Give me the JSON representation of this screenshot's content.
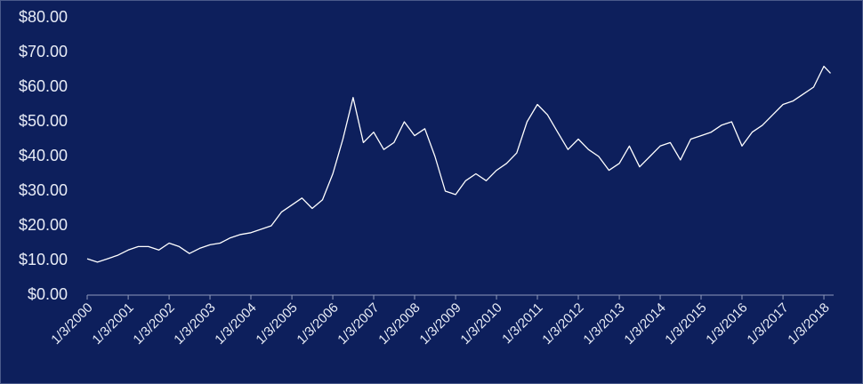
{
  "chart_data": {
    "type": "line",
    "x": [
      "2000-01-03",
      "2000-04-03",
      "2000-07-03",
      "2000-10-03",
      "2001-01-03",
      "2001-04-03",
      "2001-07-03",
      "2001-10-03",
      "2002-01-03",
      "2002-04-03",
      "2002-07-03",
      "2002-10-03",
      "2003-01-03",
      "2003-04-03",
      "2003-07-03",
      "2003-10-03",
      "2004-01-03",
      "2004-04-03",
      "2004-07-03",
      "2004-10-03",
      "2005-01-03",
      "2005-04-03",
      "2005-07-03",
      "2005-10-03",
      "2006-01-03",
      "2006-04-03",
      "2006-07-03",
      "2006-10-03",
      "2007-01-03",
      "2007-04-03",
      "2007-07-03",
      "2007-10-03",
      "2008-01-03",
      "2008-04-03",
      "2008-07-03",
      "2008-10-03",
      "2009-01-03",
      "2009-04-03",
      "2009-07-03",
      "2009-10-03",
      "2010-01-03",
      "2010-04-03",
      "2010-07-03",
      "2010-10-03",
      "2011-01-03",
      "2011-04-03",
      "2011-07-03",
      "2011-10-03",
      "2012-01-03",
      "2012-04-03",
      "2012-07-03",
      "2012-10-03",
      "2013-01-03",
      "2013-04-03",
      "2013-07-03",
      "2013-10-03",
      "2014-01-03",
      "2014-04-03",
      "2014-07-03",
      "2014-10-03",
      "2015-01-03",
      "2015-04-03",
      "2015-07-03",
      "2015-10-03",
      "2016-01-03",
      "2016-04-03",
      "2016-07-03",
      "2016-10-03",
      "2017-01-03",
      "2017-04-03",
      "2017-07-03",
      "2017-10-03",
      "2018-01-03",
      "2018-03-03"
    ],
    "values": [
      10.5,
      9.5,
      10.5,
      11.5,
      13,
      14,
      14,
      13,
      15,
      14,
      12,
      13.5,
      14.5,
      15,
      16.5,
      17.5,
      18,
      19,
      20,
      24,
      26,
      28,
      25,
      27.5,
      35,
      45,
      57,
      44,
      47,
      42,
      44,
      50,
      46,
      48,
      40,
      30,
      29,
      33,
      35,
      33,
      36,
      38,
      41,
      50,
      55,
      52,
      47,
      42,
      45,
      42,
      40,
      36,
      38,
      43,
      37,
      40,
      43,
      44,
      39,
      45,
      46,
      47,
      49,
      50,
      43,
      47,
      49,
      52,
      55,
      56,
      58,
      60,
      66,
      64
    ],
    "color": "#ffffff",
    "xlim": [
      "2000-01-03",
      "2018-03-31"
    ],
    "xticks": [
      {
        "value": "2000-01-03",
        "label": "1/3/2000"
      },
      {
        "value": "2001-01-03",
        "label": "1/3/2001"
      },
      {
        "value": "2002-01-03",
        "label": "1/3/2002"
      },
      {
        "value": "2003-01-03",
        "label": "1/3/2003"
      },
      {
        "value": "2004-01-03",
        "label": "1/3/2004"
      },
      {
        "value": "2005-01-03",
        "label": "1/3/2005"
      },
      {
        "value": "2006-01-03",
        "label": "1/3/2006"
      },
      {
        "value": "2007-01-03",
        "label": "1/3/2007"
      },
      {
        "value": "2008-01-03",
        "label": "1/3/2008"
      },
      {
        "value": "2009-01-03",
        "label": "1/3/2009"
      },
      {
        "value": "2010-01-03",
        "label": "1/3/2010"
      },
      {
        "value": "2011-01-03",
        "label": "1/3/2011"
      },
      {
        "value": "2012-01-03",
        "label": "1/3/2012"
      },
      {
        "value": "2013-01-03",
        "label": "1/3/2013"
      },
      {
        "value": "2014-01-03",
        "label": "1/3/2014"
      },
      {
        "value": "2015-01-03",
        "label": "1/3/2015"
      },
      {
        "value": "2016-01-03",
        "label": "1/3/2016"
      },
      {
        "value": "2017-01-03",
        "label": "1/3/2017"
      },
      {
        "value": "2018-01-03",
        "label": "1/3/2018"
      }
    ],
    "ylim": [
      0,
      80
    ],
    "yticks": [
      {
        "value": 0,
        "label": "$0.00"
      },
      {
        "value": 10,
        "label": "$10.00"
      },
      {
        "value": 20,
        "label": "$20.00"
      },
      {
        "value": 30,
        "label": "$30.00"
      },
      {
        "value": 40,
        "label": "$40.00"
      },
      {
        "value": 50,
        "label": "$50.00"
      },
      {
        "value": 60,
        "label": "$60.00"
      },
      {
        "value": 70,
        "label": "$70.00"
      },
      {
        "value": 80,
        "label": "$80.00"
      }
    ],
    "grid": false
  }
}
